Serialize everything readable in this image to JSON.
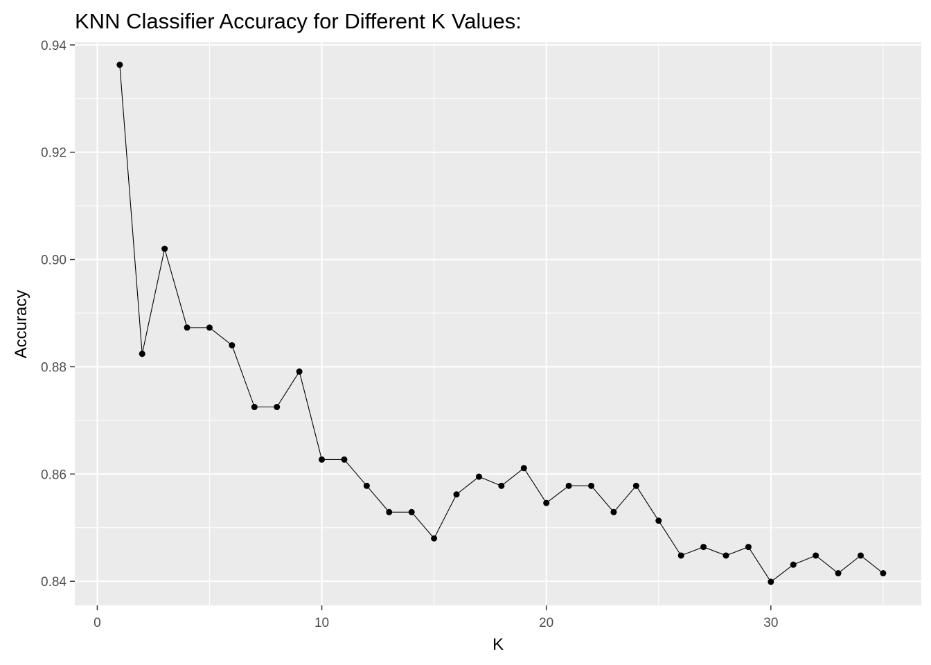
{
  "chart_data": {
    "type": "line",
    "title": "KNN Classifier Accuracy for Different K Values:",
    "xlabel": "K",
    "ylabel": "Accuracy",
    "xlim": [
      -1,
      36.7
    ],
    "ylim": [
      0.8355,
      0.9405
    ],
    "x_ticks": [
      0,
      10,
      20,
      30
    ],
    "x_tick_labels": [
      "0",
      "10",
      "20",
      "30"
    ],
    "y_ticks": [
      0.84,
      0.86,
      0.88,
      0.9,
      0.92,
      0.94
    ],
    "y_tick_labels": [
      "0.84",
      "0.86",
      "0.88",
      "0.90",
      "0.92",
      "0.94"
    ],
    "grid": true,
    "markers": true,
    "series": [
      {
        "x": [
          1,
          2,
          3,
          4,
          5,
          6,
          7,
          8,
          9,
          10,
          11,
          12,
          13,
          14,
          15,
          16,
          17,
          18,
          19,
          20,
          21,
          22,
          23,
          24,
          25,
          26,
          27,
          28,
          29,
          30,
          31,
          32,
          33,
          34,
          35
        ],
        "y": [
          0.9363,
          0.8824,
          0.902,
          0.8873,
          0.8873,
          0.884,
          0.8725,
          0.8725,
          0.8791,
          0.8627,
          0.8627,
          0.8578,
          0.8529,
          0.8529,
          0.848,
          0.8562,
          0.8595,
          0.8578,
          0.8611,
          0.8546,
          0.8578,
          0.8578,
          0.8529,
          0.8578,
          0.8513,
          0.8448,
          0.8464,
          0.8448,
          0.8464,
          0.8399,
          0.8431,
          0.8448,
          0.8415,
          0.8448,
          0.8415
        ],
        "color": "#000000"
      }
    ],
    "panel_color": "#ebebeb",
    "grid_color": "#ffffff"
  }
}
